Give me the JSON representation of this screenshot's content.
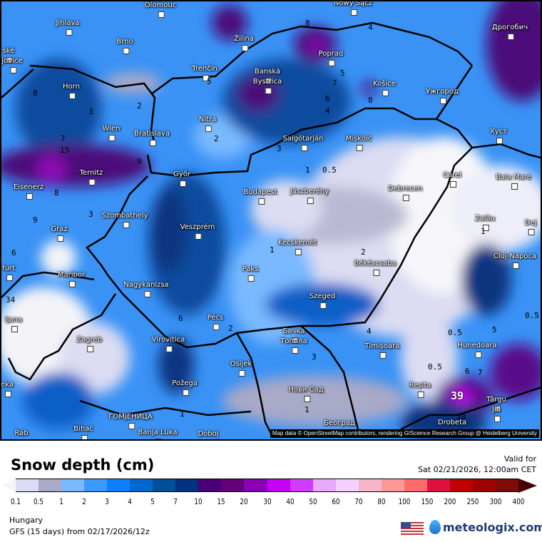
{
  "title": "Snow depth (cm)",
  "valid": {
    "label": "Valid for",
    "datetime": "Sat 02/21/2026, 12:00am CET"
  },
  "region": "Hungary",
  "model": "GFS (15 days) from  02/17/2026/12z",
  "brand": "meteologix.com",
  "attribution": "Map data © OpenStreetMap contributors, rendering GIScience Research Group @ Heidelberg University",
  "legend": {
    "ticks": [
      "0.1",
      "0.5",
      "1",
      "2",
      "3",
      "4",
      "5",
      "7",
      "10",
      "15",
      "20",
      "30",
      "40",
      "50",
      "60",
      "70",
      "80",
      "100",
      "150",
      "200",
      "250",
      "300",
      "400"
    ],
    "colors": [
      "#dcdcf6",
      "#a9a9c8",
      "#79b9ff",
      "#3a99ff",
      "#0a80ff",
      "#0068d0",
      "#004f9a",
      "#00327f",
      "#4b007a",
      "#66007a",
      "#8c00b5",
      "#c400f5",
      "#d23cff",
      "#eaa8ff",
      "#f4d0ff",
      "#f8b4c8",
      "#ff9999",
      "#ff6b6b",
      "#e0103c",
      "#c00000",
      "#a00000",
      "#800a0a"
    ],
    "under_color": "#f4f4f4",
    "over_color": "#4a0000"
  },
  "cities": [
    "Olomouc",
    "Nowy Sącz",
    "Jihlava",
    "Brno",
    "ské",
    "jovice",
    "Žilina",
    "Poprad",
    "Дрогобич",
    "Trenčín",
    "Banská",
    "Bystrica",
    "Košice",
    "Ужгород",
    "Horn",
    "Nitra",
    "Wien",
    "Bratislava",
    "Salgótarján",
    "Miskolc",
    "Хуст",
    "Ternitz",
    "Eisenerz",
    "Győr",
    "Budapest",
    "Jászberény",
    "Debrecen",
    "Carei",
    "Baia Mare",
    "Szombathely",
    "Graz",
    "Veszprém",
    "Zalău",
    "Dej",
    "Kecskemét",
    "Paks",
    "Cluj-Napoca",
    "Békéscsaba",
    "furt",
    "Maribor",
    "Nagykanizsa",
    "ljana",
    "Szeged",
    "Pécs",
    "Zagreb",
    "Virovitica",
    "Бачка",
    "Топола",
    "Timișoara",
    "Hunedoara",
    "Osijek",
    "eka",
    "Požega",
    "Reșita",
    "Нови Сад",
    "Târgu",
    "Jiu",
    "ГОМЈЕНИЦА",
    "Bihać",
    "Banja Luka",
    "Doboj",
    "Rab",
    "Београд",
    "Drobeta"
  ],
  "contour_labels": [
    "8",
    "3",
    "2",
    "7",
    "15",
    "9",
    "8",
    "3",
    "5",
    "2",
    "8",
    "4",
    "5",
    "7",
    "6",
    "4",
    "8",
    "3",
    "1",
    "0.5",
    "6",
    "2",
    "6",
    "2",
    "1",
    "4",
    "3",
    "1",
    "0.5",
    "0.5",
    "5",
    "6",
    "7",
    "10",
    "39",
    "1",
    "1",
    "0.5",
    "9",
    "34"
  ]
}
